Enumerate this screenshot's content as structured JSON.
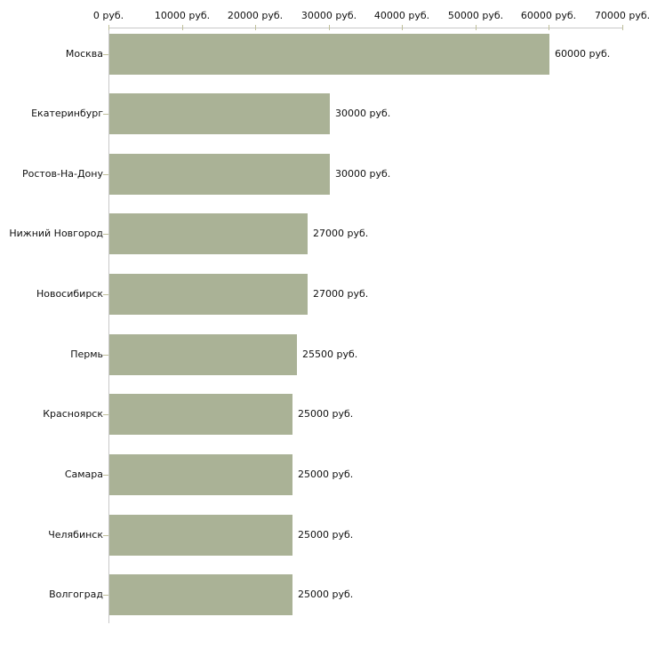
{
  "chart_data": {
    "type": "bar",
    "orientation": "horizontal",
    "title": "",
    "xlabel": "",
    "ylabel": "",
    "categories": [
      "Москва",
      "Екатеринбург",
      "Ростов-На-Дону",
      "Нижний Новгород",
      "Новосибирск",
      "Пермь",
      "Красноярск",
      "Самара",
      "Челябинск",
      "Волгоград"
    ],
    "values": [
      60000,
      30000,
      30000,
      27000,
      27000,
      25500,
      25000,
      25000,
      25000,
      25000
    ],
    "value_labels": [
      "60000 руб.",
      "30000 руб.",
      "30000 руб.",
      "27000 руб.",
      "27000 руб.",
      "25500 руб.",
      "25000 руб.",
      "25000 руб.",
      "25000 руб.",
      "25000 руб."
    ],
    "x_axis": {
      "position": "top",
      "min": 0,
      "max": 70000,
      "tick_values": [
        0,
        10000,
        20000,
        30000,
        40000,
        50000,
        60000,
        70000
      ],
      "tick_labels": [
        "0 руб.",
        "10000 руб.",
        "20000 руб.",
        "30000 руб.",
        "40000 руб.",
        "50000 руб.",
        "60000 руб.",
        "70000 руб."
      ]
    },
    "grid": "off",
    "legend": "none",
    "colors": {
      "bar": "#aab296",
      "axis_line": "#c8c8c8",
      "tick_mark": "#bfbf9a",
      "text": "#111111",
      "background": "#ffffff"
    }
  }
}
